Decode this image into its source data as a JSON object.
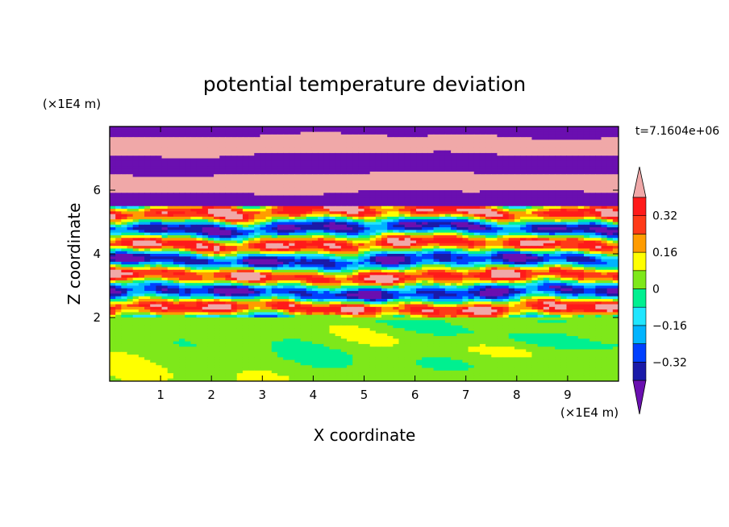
{
  "chart_data": {
    "type": "heatmap",
    "title": "potential temperature deviation",
    "xlabel": "X coordinate",
    "ylabel": "Z coordinate",
    "x_unit": "(×1E4 m)",
    "y_unit": "(×1E4 m)",
    "time_label": "t=7.1604e+06",
    "xlim": [
      0,
      10
    ],
    "ylim": [
      0,
      8
    ],
    "x_ticks": [
      "1",
      "2",
      "3",
      "4",
      "5",
      "6",
      "7",
      "8",
      "9"
    ],
    "y_ticks": [
      "2",
      "4",
      "6"
    ],
    "colorbar": {
      "ticks": [
        "0.32",
        "0.16",
        "0",
        "-0.16",
        "-0.32"
      ],
      "levels": [
        -0.4,
        -0.32,
        -0.24,
        -0.16,
        -0.08,
        0,
        0.08,
        0.16,
        0.24,
        0.32,
        0.4
      ],
      "colors": [
        "#6a0fb0",
        "#1a1aa8",
        "#0040ff",
        "#00b4ff",
        "#20e6ff",
        "#00f090",
        "#7ee81a",
        "#ffff00",
        "#ff9c00",
        "#ff3a18",
        "#ff1a1a",
        "#f0a8a8"
      ]
    },
    "regions": [
      {
        "z_range": [
          0,
          2.0
        ],
        "description": "stable layer, values about 0 to 0.08"
      },
      {
        "z_range": [
          2.0,
          5.5
        ],
        "description": "turbulent mixed layer, values from -0.4 to 0.4"
      },
      {
        "z_range": [
          5.5,
          8.0
        ],
        "description": "alternating horizontal bands, values below -0.4 and above 0.4"
      }
    ]
  }
}
